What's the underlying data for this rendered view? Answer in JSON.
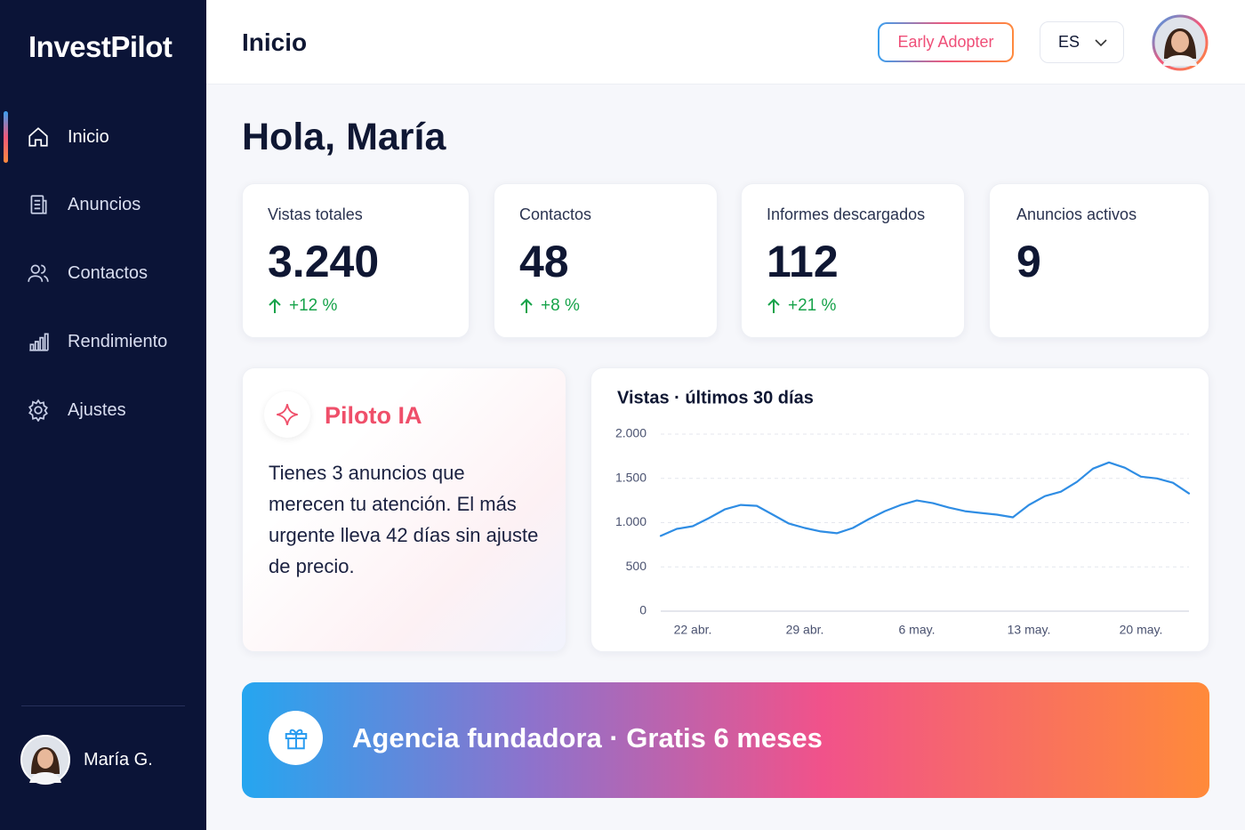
{
  "sidebar": {
    "brand": "InvestPilot",
    "nav": [
      "Inicio",
      "Anuncios",
      "Contactos",
      "Rendimiento",
      "Ajustes"
    ],
    "user": "María G."
  },
  "header": {
    "title": "Inicio",
    "badge": "Early Adopter",
    "language": "ES"
  },
  "greeting": "Hola, María",
  "stats": [
    {
      "label": "Vistas totales",
      "value": "3.240",
      "change": "+12 %"
    },
    {
      "label": "Contactos",
      "value": "48",
      "change": "+8 %"
    },
    {
      "label": "Informes descargados",
      "value": "112",
      "change": "+21 %"
    },
    {
      "label": "Anuncios activos",
      "value": "9"
    }
  ],
  "ai_card": {
    "title": "Piloto IA",
    "text": "Tienes 3 anuncios que merecen tu atención. El más urgente lleva 42 días sin ajuste de precio."
  },
  "chart": {
    "type": "line",
    "title": "Vistas · últimos 30 días",
    "categories": [
      null,
      null,
      "22 abr.",
      null,
      null,
      null,
      null,
      null,
      null,
      "29 abr.",
      null,
      null,
      null,
      null,
      null,
      null,
      "6 may.",
      null,
      null,
      null,
      null,
      null,
      null,
      "13 may.",
      null,
      null,
      null,
      null,
      null,
      null,
      "20 may.",
      null,
      null,
      null
    ],
    "values": [
      850,
      930,
      960,
      1050,
      1150,
      1200,
      1190,
      1090,
      990,
      940,
      900,
      880,
      940,
      1040,
      1130,
      1200,
      1250,
      1220,
      1170,
      1130,
      1110,
      1090,
      1060,
      1200,
      1300,
      1350,
      1460,
      1610,
      1680,
      1620,
      1520,
      1500,
      1450,
      1330
    ],
    "color": "#2f8de4",
    "ylim": [
      0,
      2000
    ],
    "yticks": [
      0,
      500,
      {
        "value": 1000,
        "label": "1.000"
      },
      {
        "value": 1500,
        "label": "1.500"
      },
      {
        "value": 2000,
        "label": "2.000"
      }
    ],
    "grid": true
  },
  "banner": {
    "text": "Agencia fundadora · Gratis 6 meses"
  }
}
